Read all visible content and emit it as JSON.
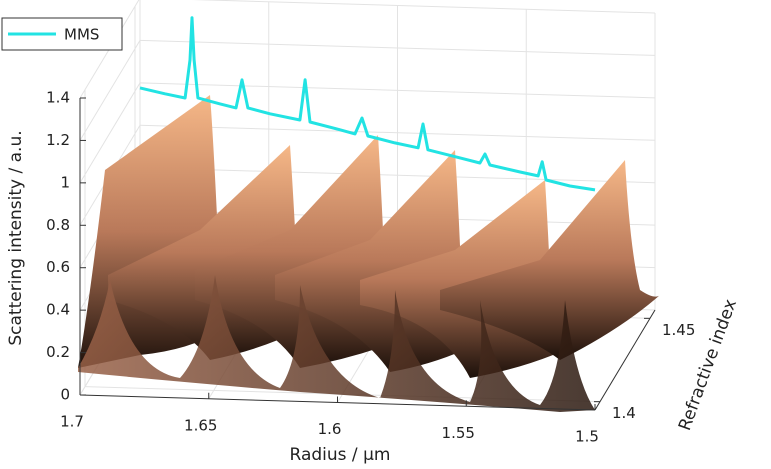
{
  "chart_data": {
    "type": "line3d",
    "xlabel": "Radius / μm",
    "ylabel": "Refractive index",
    "zlabel": "Scattering intensity / a.u.",
    "xlim": [
      1.5,
      1.7
    ],
    "x_reversed": true,
    "xticks": [
      1.5,
      1.55,
      1.6,
      1.65,
      1.7
    ],
    "ylim": [
      1.395,
      1.455
    ],
    "yticks": [
      1.4,
      1.45
    ],
    "zlim": [
      0,
      1.4
    ],
    "zticks": [
      0,
      0.2,
      0.4,
      0.6,
      0.8,
      1,
      1.2,
      1.4
    ],
    "grid": true,
    "legend": "upper left",
    "series": [
      {
        "name": "MMS",
        "color": "#22e3e3",
        "x": [
          1.7,
          1.6903,
          1.6825,
          1.6806,
          1.6798,
          1.679,
          1.6775,
          1.6689,
          1.6627,
          1.6604,
          1.6581,
          1.6495,
          1.6379,
          1.6359,
          1.634,
          1.6223,
          1.6165,
          1.6138,
          1.6115,
          1.601,
          1.592,
          1.5901,
          1.5882,
          1.5757,
          1.568,
          1.566,
          1.5641,
          1.5524,
          1.5454,
          1.5438,
          1.5423,
          1.533,
          1.5233
        ],
        "values": [
          0.976,
          0.952,
          0.935,
          1.115,
          1.314,
          1.116,
          0.937,
          0.912,
          0.895,
          1.028,
          0.897,
          0.872,
          0.847,
          1.037,
          0.839,
          0.806,
          0.789,
          0.865,
          0.781,
          0.752,
          0.732,
          0.845,
          0.724,
          0.69,
          0.669,
          0.712,
          0.661,
          0.632,
          0.616,
          0.683,
          0.598,
          0.573,
          0.558
        ]
      }
    ]
  }
}
